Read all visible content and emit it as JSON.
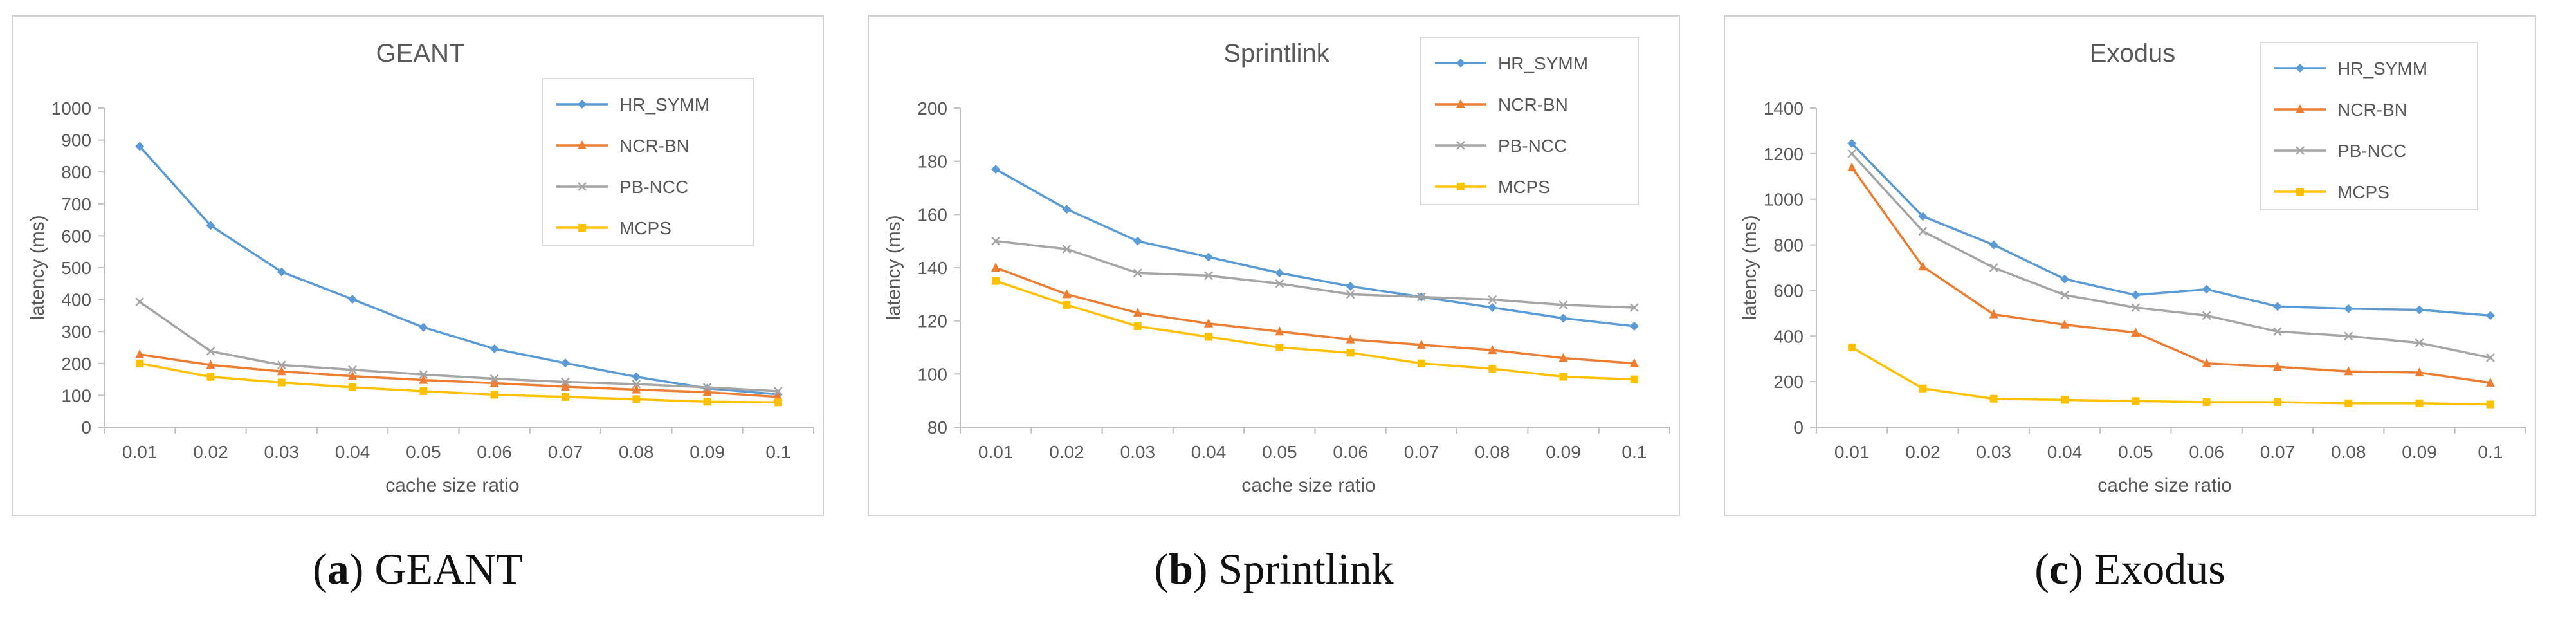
{
  "chart_data": [
    {
      "type": "line",
      "title": "GEANT",
      "xlabel": "cache size ratio",
      "ylabel": "latency (ms)",
      "categories": [
        "0.01",
        "0.02",
        "0.03",
        "0.04",
        "0.05",
        "0.06",
        "0.07",
        "0.08",
        "0.09",
        "0.1"
      ],
      "ylim": [
        0,
        1000
      ],
      "yticks": [
        0,
        100,
        200,
        300,
        400,
        500,
        600,
        700,
        800,
        900,
        1000
      ],
      "legend_position": "top-right",
      "series": [
        {
          "name": "HR_SYMM",
          "color": "#5b9bd5",
          "marker": "diamond",
          "values": [
            880,
            632,
            487,
            401,
            313,
            246,
            201,
            158,
            122,
            103
          ]
        },
        {
          "name": "NCR-BN",
          "color": "#ed7d31",
          "marker": "triangle",
          "values": [
            228,
            195,
            175,
            160,
            148,
            138,
            127,
            118,
            110,
            95
          ]
        },
        {
          "name": "PB-NCC",
          "color": "#a5a5a5",
          "marker": "x",
          "values": [
            393,
            238,
            195,
            180,
            165,
            152,
            142,
            135,
            125,
            113
          ]
        },
        {
          "name": "MCPS",
          "color": "#ffc000",
          "marker": "square",
          "values": [
            200,
            158,
            140,
            125,
            113,
            102,
            95,
            88,
            80,
            78
          ]
        }
      ]
    },
    {
      "type": "line",
      "title": "Sprintlink",
      "xlabel": "cache size ratio",
      "ylabel": "latency (ms)",
      "categories": [
        "0.01",
        "0.02",
        "0.03",
        "0.04",
        "0.05",
        "0.06",
        "0.07",
        "0.08",
        "0.09",
        "0.1"
      ],
      "ylim": [
        80,
        200
      ],
      "yticks": [
        80,
        100,
        120,
        140,
        160,
        180,
        200
      ],
      "legend_position": "top-right",
      "series": [
        {
          "name": "HR_SYMM",
          "color": "#5b9bd5",
          "marker": "diamond",
          "values": [
            177,
            162,
            150,
            144,
            138,
            133,
            129,
            125,
            121,
            118
          ]
        },
        {
          "name": "NCR-BN",
          "color": "#ed7d31",
          "marker": "triangle",
          "values": [
            140,
            130,
            123,
            119,
            116,
            113,
            111,
            109,
            106,
            104
          ]
        },
        {
          "name": "PB-NCC",
          "color": "#a5a5a5",
          "marker": "x",
          "values": [
            150,
            147,
            138,
            137,
            134,
            130,
            129,
            128,
            126,
            125
          ]
        },
        {
          "name": "MCPS",
          "color": "#ffc000",
          "marker": "square",
          "values": [
            135,
            126,
            118,
            114,
            110,
            108,
            104,
            102,
            99,
            98
          ]
        }
      ]
    },
    {
      "type": "line",
      "title": "Exodus",
      "xlabel": "cache size ratio",
      "ylabel": "latency (ms)",
      "categories": [
        "0.01",
        "0.02",
        "0.03",
        "0.04",
        "0.05",
        "0.06",
        "0.07",
        "0.08",
        "0.09",
        "0.1"
      ],
      "ylim": [
        0,
        1400
      ],
      "yticks": [
        0,
        200,
        400,
        600,
        800,
        1000,
        1200,
        1400
      ],
      "legend_position": "top-right",
      "series": [
        {
          "name": "HR_SYMM",
          "color": "#5b9bd5",
          "marker": "diamond",
          "values": [
            1245,
            925,
            800,
            650,
            580,
            605,
            530,
            520,
            515,
            490
          ]
        },
        {
          "name": "NCR-BN",
          "color": "#ed7d31",
          "marker": "triangle",
          "values": [
            1140,
            705,
            495,
            450,
            415,
            280,
            265,
            245,
            240,
            195
          ]
        },
        {
          "name": "PB-NCC",
          "color": "#a5a5a5",
          "marker": "x",
          "values": [
            1200,
            860,
            700,
            580,
            525,
            490,
            420,
            400,
            370,
            305
          ]
        },
        {
          "name": "MCPS",
          "color": "#ffc000",
          "marker": "square",
          "values": [
            350,
            170,
            125,
            120,
            115,
            110,
            110,
            105,
            105,
            100
          ]
        }
      ]
    }
  ],
  "captions": [
    {
      "label": "a",
      "text": "GEANT"
    },
    {
      "label": "b",
      "text": "Sprintlink"
    },
    {
      "label": "c",
      "text": "Exodus"
    }
  ]
}
